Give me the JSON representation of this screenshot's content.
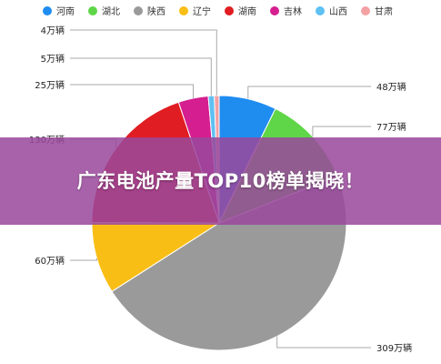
{
  "banner": {
    "title": "广东电池产量TOP10榜单揭晓！"
  },
  "chart_data": {
    "type": "pie",
    "unit": "万辆",
    "slices": [
      {
        "name": "河南",
        "value": 48,
        "label": "48万辆",
        "color": "#1f8cf0"
      },
      {
        "name": "湖北",
        "value": 77,
        "label": "77万辆",
        "color": "#5fd548"
      },
      {
        "name": "陕西",
        "value": 309,
        "label": "309万辆",
        "color": "#9a9a9a"
      },
      {
        "name": "辽宁",
        "value": 60,
        "label": "60万辆",
        "color": "#f9be16"
      },
      {
        "name": "湖南",
        "value": 130,
        "label": "130万辆",
        "color": "#e01d22"
      },
      {
        "name": "吉林",
        "value": 25,
        "label": "25万辆",
        "color": "#d51e8f"
      },
      {
        "name": "山西",
        "value": 5,
        "label": "5万辆",
        "color": "#5fc0f2"
      },
      {
        "name": "甘肃",
        "value": 4,
        "label": "4万辆",
        "color": "#f4a1a3"
      }
    ],
    "legend_position": "top"
  }
}
